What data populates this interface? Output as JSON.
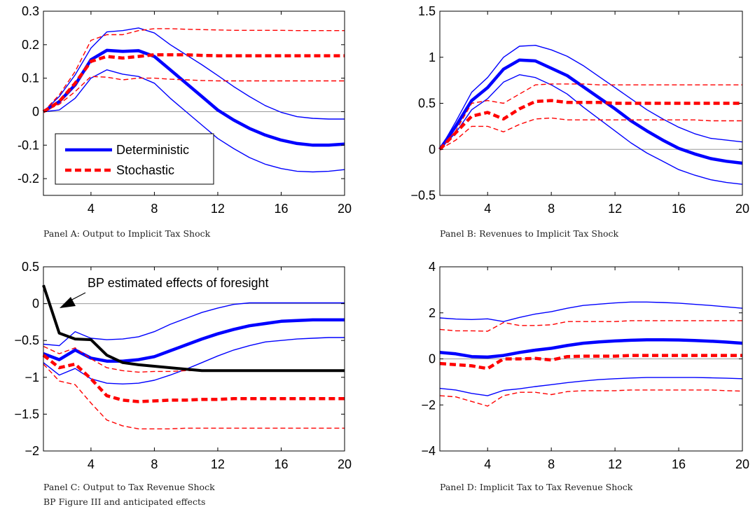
{
  "chart_data": [
    {
      "type": "line",
      "caption": "Panel A: Output to Implicit Tax Shock",
      "xlim": [
        1,
        20
      ],
      "ylim": [
        -0.25,
        0.3
      ],
      "xticks": [
        "4",
        "8",
        "12",
        "16",
        "20"
      ],
      "yticks": [
        "0.3",
        "0.2",
        "0.1",
        "0",
        "-0.1",
        "-0.2"
      ],
      "ytick_values": [
        0.3,
        0.2,
        0.1,
        0,
        -0.1,
        -0.2
      ],
      "grid": false,
      "legend": {
        "placement": "lower-left",
        "entries": [
          "Deterministic",
          "Stochastic"
        ]
      },
      "x": [
        1,
        2,
        3,
        4,
        5,
        6,
        7,
        8,
        9,
        10,
        11,
        12,
        13,
        14,
        15,
        16,
        17,
        18,
        19,
        20
      ],
      "series": [
        {
          "name": "Deterministic",
          "style": "solid-thick",
          "color": "#0000ff",
          "values": [
            0,
            0.03,
            0.08,
            0.155,
            0.183,
            0.18,
            0.182,
            0.165,
            0.125,
            0.085,
            0.045,
            0.005,
            -0.025,
            -0.05,
            -0.07,
            -0.085,
            -0.095,
            -0.1,
            -0.1,
            -0.097
          ]
        },
        {
          "style": "solid-thin",
          "color": "#0000ff",
          "values": [
            0,
            0.045,
            0.11,
            0.19,
            0.238,
            0.242,
            0.25,
            0.235,
            0.2,
            0.17,
            0.14,
            0.108,
            0.075,
            0.045,
            0.018,
            -0.002,
            -0.015,
            -0.02,
            -0.022,
            -0.022
          ]
        },
        {
          "style": "solid-thin",
          "color": "#0000ff",
          "values": [
            0,
            0.005,
            0.04,
            0.1,
            0.125,
            0.112,
            0.105,
            0.085,
            0.04,
            0,
            -0.04,
            -0.08,
            -0.11,
            -0.137,
            -0.157,
            -0.17,
            -0.178,
            -0.18,
            -0.178,
            -0.173
          ]
        },
        {
          "name": "Stochastic",
          "style": "dashed-thick",
          "color": "#ff0000",
          "values": [
            0,
            0.03,
            0.085,
            0.15,
            0.165,
            0.16,
            0.165,
            0.17,
            0.17,
            0.17,
            0.168,
            0.167,
            0.167,
            0.167,
            0.167,
            0.167,
            0.167,
            0.167,
            0.167,
            0.167
          ]
        },
        {
          "style": "dashed-thin",
          "color": "#ff0000",
          "values": [
            0,
            0.05,
            0.12,
            0.213,
            0.23,
            0.23,
            0.242,
            0.248,
            0.248,
            0.246,
            0.245,
            0.244,
            0.243,
            0.243,
            0.243,
            0.243,
            0.242,
            0.242,
            0.242,
            0.242
          ]
        },
        {
          "style": "dashed-thin",
          "color": "#ff0000",
          "values": [
            0,
            0.022,
            0.06,
            0.105,
            0.103,
            0.095,
            0.1,
            0.1,
            0.097,
            0.095,
            0.093,
            0.092,
            0.092,
            0.092,
            0.092,
            0.092,
            0.092,
            0.092,
            0.092,
            0.092
          ]
        }
      ]
    },
    {
      "type": "line",
      "caption": "Panel B: Revenues to Implicit Tax Shock",
      "xlim": [
        1,
        20
      ],
      "ylim": [
        -0.5,
        1.5
      ],
      "xticks": [
        "4",
        "8",
        "12",
        "16",
        "20"
      ],
      "yticks": [
        "1.5",
        "1",
        "0.5",
        "0",
        "−0.5"
      ],
      "ytick_values": [
        1.5,
        1,
        0.5,
        0,
        -0.5
      ],
      "grid": false,
      "x": [
        1,
        2,
        3,
        4,
        5,
        6,
        7,
        8,
        9,
        10,
        11,
        12,
        13,
        14,
        15,
        16,
        17,
        18,
        19,
        20
      ],
      "series": [
        {
          "name": "Deterministic",
          "style": "solid-thick",
          "color": "#0000ff",
          "values": [
            0,
            0.25,
            0.53,
            0.67,
            0.87,
            0.97,
            0.96,
            0.88,
            0.8,
            0.68,
            0.56,
            0.44,
            0.31,
            0.2,
            0.1,
            0.01,
            -0.05,
            -0.1,
            -0.13,
            -0.15
          ]
        },
        {
          "style": "solid-thin",
          "color": "#0000ff",
          "values": [
            0,
            0.3,
            0.62,
            0.78,
            1.0,
            1.12,
            1.13,
            1.08,
            1.01,
            0.91,
            0.79,
            0.67,
            0.55,
            0.43,
            0.33,
            0.24,
            0.17,
            0.12,
            0.1,
            0.08
          ]
        },
        {
          "style": "solid-thin",
          "color": "#0000ff",
          "values": [
            0,
            0.18,
            0.43,
            0.55,
            0.73,
            0.81,
            0.78,
            0.7,
            0.6,
            0.46,
            0.33,
            0.2,
            0.07,
            -0.04,
            -0.13,
            -0.22,
            -0.28,
            -0.33,
            -0.36,
            -0.38
          ]
        },
        {
          "name": "Stochastic",
          "style": "dashed-thick",
          "color": "#ff0000",
          "values": [
            0,
            0.18,
            0.36,
            0.4,
            0.33,
            0.44,
            0.52,
            0.53,
            0.51,
            0.51,
            0.51,
            0.5,
            0.5,
            0.5,
            0.5,
            0.5,
            0.5,
            0.5,
            0.5,
            0.5
          ]
        },
        {
          "style": "dashed-thin",
          "color": "#ff0000",
          "values": [
            0,
            0.2,
            0.5,
            0.53,
            0.5,
            0.6,
            0.7,
            0.71,
            0.71,
            0.71,
            0.7,
            0.7,
            0.7,
            0.7,
            0.7,
            0.7,
            0.7,
            0.7,
            0.7,
            0.7
          ]
        },
        {
          "style": "dashed-thin",
          "color": "#ff0000",
          "values": [
            0,
            0.1,
            0.25,
            0.25,
            0.19,
            0.27,
            0.33,
            0.34,
            0.32,
            0.32,
            0.32,
            0.32,
            0.32,
            0.32,
            0.32,
            0.32,
            0.32,
            0.31,
            0.31,
            0.31
          ]
        }
      ]
    },
    {
      "type": "line",
      "caption": "Panel C: Output to Tax Revenue Shock",
      "caption2": "BP Figure III and anticipated effects",
      "annotation": "BP estimated effects of foresight",
      "xlim": [
        1,
        20
      ],
      "ylim": [
        -2,
        0.5
      ],
      "xticks": [
        "4",
        "8",
        "12",
        "16",
        "20"
      ],
      "yticks": [
        "0.5",
        "0",
        "−0.5",
        "−1",
        "−1.5",
        "−2"
      ],
      "ytick_values": [
        0.5,
        0,
        -0.5,
        -1,
        -1.5,
        -2
      ],
      "grid": false,
      "x": [
        1,
        2,
        3,
        4,
        5,
        6,
        7,
        8,
        9,
        10,
        11,
        12,
        13,
        14,
        15,
        16,
        17,
        18,
        19,
        20
      ],
      "series": [
        {
          "name": "Deterministic",
          "style": "solid-thick",
          "color": "#0000ff",
          "values": [
            -0.68,
            -0.76,
            -0.63,
            -0.74,
            -0.78,
            -0.78,
            -0.76,
            -0.72,
            -0.64,
            -0.56,
            -0.48,
            -0.41,
            -0.35,
            -0.3,
            -0.27,
            -0.24,
            -0.23,
            -0.22,
            -0.22,
            -0.22
          ]
        },
        {
          "style": "solid-thin",
          "color": "#0000ff",
          "values": [
            -0.55,
            -0.57,
            -0.38,
            -0.47,
            -0.49,
            -0.48,
            -0.45,
            -0.38,
            -0.28,
            -0.2,
            -0.12,
            -0.06,
            -0.01,
            0.01,
            0.01,
            0.01,
            0.01,
            0.01,
            0.01,
            0.01
          ]
        },
        {
          "style": "solid-thin",
          "color": "#0000ff",
          "values": [
            -0.8,
            -0.97,
            -0.88,
            -1.02,
            -1.08,
            -1.09,
            -1.08,
            -1.04,
            -0.97,
            -0.89,
            -0.8,
            -0.71,
            -0.63,
            -0.57,
            -0.52,
            -0.5,
            -0.48,
            -0.47,
            -0.46,
            -0.46
          ]
        },
        {
          "name": "Stochastic",
          "style": "dashed-thick",
          "color": "#ff0000",
          "values": [
            -0.7,
            -0.87,
            -0.82,
            -1.02,
            -1.25,
            -1.31,
            -1.33,
            -1.32,
            -1.31,
            -1.31,
            -1.3,
            -1.3,
            -1.29,
            -1.29,
            -1.29,
            -1.29,
            -1.29,
            -1.29,
            -1.29,
            -1.29
          ]
        },
        {
          "style": "dashed-thin",
          "color": "#ff0000",
          "values": [
            -0.58,
            -0.68,
            -0.6,
            -0.75,
            -0.87,
            -0.91,
            -0.93,
            -0.92,
            -0.92,
            -0.91,
            -0.91,
            -0.91,
            -0.91,
            -0.91,
            -0.91,
            -0.91,
            -0.91,
            -0.91,
            -0.91,
            -0.91
          ]
        },
        {
          "style": "dashed-thin",
          "color": "#ff0000",
          "values": [
            -0.82,
            -1.05,
            -1.1,
            -1.35,
            -1.58,
            -1.66,
            -1.7,
            -1.7,
            -1.7,
            -1.69,
            -1.69,
            -1.69,
            -1.69,
            -1.69,
            -1.69,
            -1.69,
            -1.69,
            -1.69,
            -1.69,
            -1.69
          ]
        },
        {
          "style": "solid-black-thick",
          "color": "#000000",
          "values": [
            0.25,
            -0.4,
            -0.48,
            -0.49,
            -0.7,
            -0.8,
            -0.83,
            -0.85,
            -0.87,
            -0.89,
            -0.91,
            -0.91,
            -0.91,
            -0.91,
            -0.91,
            -0.91,
            -0.91,
            -0.91,
            -0.91,
            -0.91
          ]
        }
      ]
    },
    {
      "type": "line",
      "caption": "Panel D: Implicit Tax to Tax Revenue Shock",
      "xlim": [
        1,
        20
      ],
      "ylim": [
        -4,
        4
      ],
      "xticks": [
        "4",
        "8",
        "12",
        "16",
        "20"
      ],
      "yticks": [
        "4",
        "2",
        "0",
        "−2",
        "−4"
      ],
      "ytick_values": [
        4,
        2,
        0,
        -2,
        -4
      ],
      "grid": false,
      "x": [
        1,
        2,
        3,
        4,
        5,
        6,
        7,
        8,
        9,
        10,
        11,
        12,
        13,
        14,
        15,
        16,
        17,
        18,
        19,
        20
      ],
      "series": [
        {
          "name": "Deterministic",
          "style": "solid-thick",
          "color": "#0000ff",
          "values": [
            0.28,
            0.22,
            0.1,
            0.08,
            0.15,
            0.28,
            0.38,
            0.46,
            0.58,
            0.68,
            0.74,
            0.78,
            0.81,
            0.83,
            0.83,
            0.82,
            0.8,
            0.77,
            0.73,
            0.68
          ]
        },
        {
          "style": "solid-thin",
          "color": "#0000ff",
          "values": [
            1.78,
            1.73,
            1.71,
            1.74,
            1.62,
            1.8,
            1.95,
            2.05,
            2.2,
            2.32,
            2.38,
            2.43,
            2.47,
            2.47,
            2.45,
            2.42,
            2.37,
            2.32,
            2.26,
            2.2
          ]
        },
        {
          "style": "solid-thin",
          "color": "#0000ff",
          "values": [
            -1.28,
            -1.35,
            -1.5,
            -1.6,
            -1.37,
            -1.3,
            -1.2,
            -1.12,
            -1.03,
            -0.96,
            -0.9,
            -0.86,
            -0.83,
            -0.81,
            -0.81,
            -0.81,
            -0.81,
            -0.82,
            -0.84,
            -0.86
          ]
        },
        {
          "name": "Stochastic",
          "style": "dashed-thick",
          "color": "#ff0000",
          "values": [
            -0.2,
            -0.25,
            -0.3,
            -0.42,
            0,
            0,
            0.02,
            -0.05,
            0.1,
            0.12,
            0.12,
            0.12,
            0.15,
            0.15,
            0.15,
            0.15,
            0.15,
            0.15,
            0.15,
            0.15
          ]
        },
        {
          "style": "dashed-thin",
          "color": "#ff0000",
          "values": [
            1.28,
            1.22,
            1.22,
            1.2,
            1.58,
            1.45,
            1.45,
            1.48,
            1.62,
            1.62,
            1.62,
            1.62,
            1.66,
            1.66,
            1.66,
            1.66,
            1.66,
            1.66,
            1.66,
            1.66
          ]
        },
        {
          "style": "dashed-thin",
          "color": "#ff0000",
          "values": [
            -1.6,
            -1.65,
            -1.85,
            -2.05,
            -1.6,
            -1.45,
            -1.45,
            -1.55,
            -1.42,
            -1.38,
            -1.38,
            -1.38,
            -1.35,
            -1.35,
            -1.35,
            -1.35,
            -1.35,
            -1.35,
            -1.38,
            -1.4
          ]
        }
      ]
    }
  ]
}
